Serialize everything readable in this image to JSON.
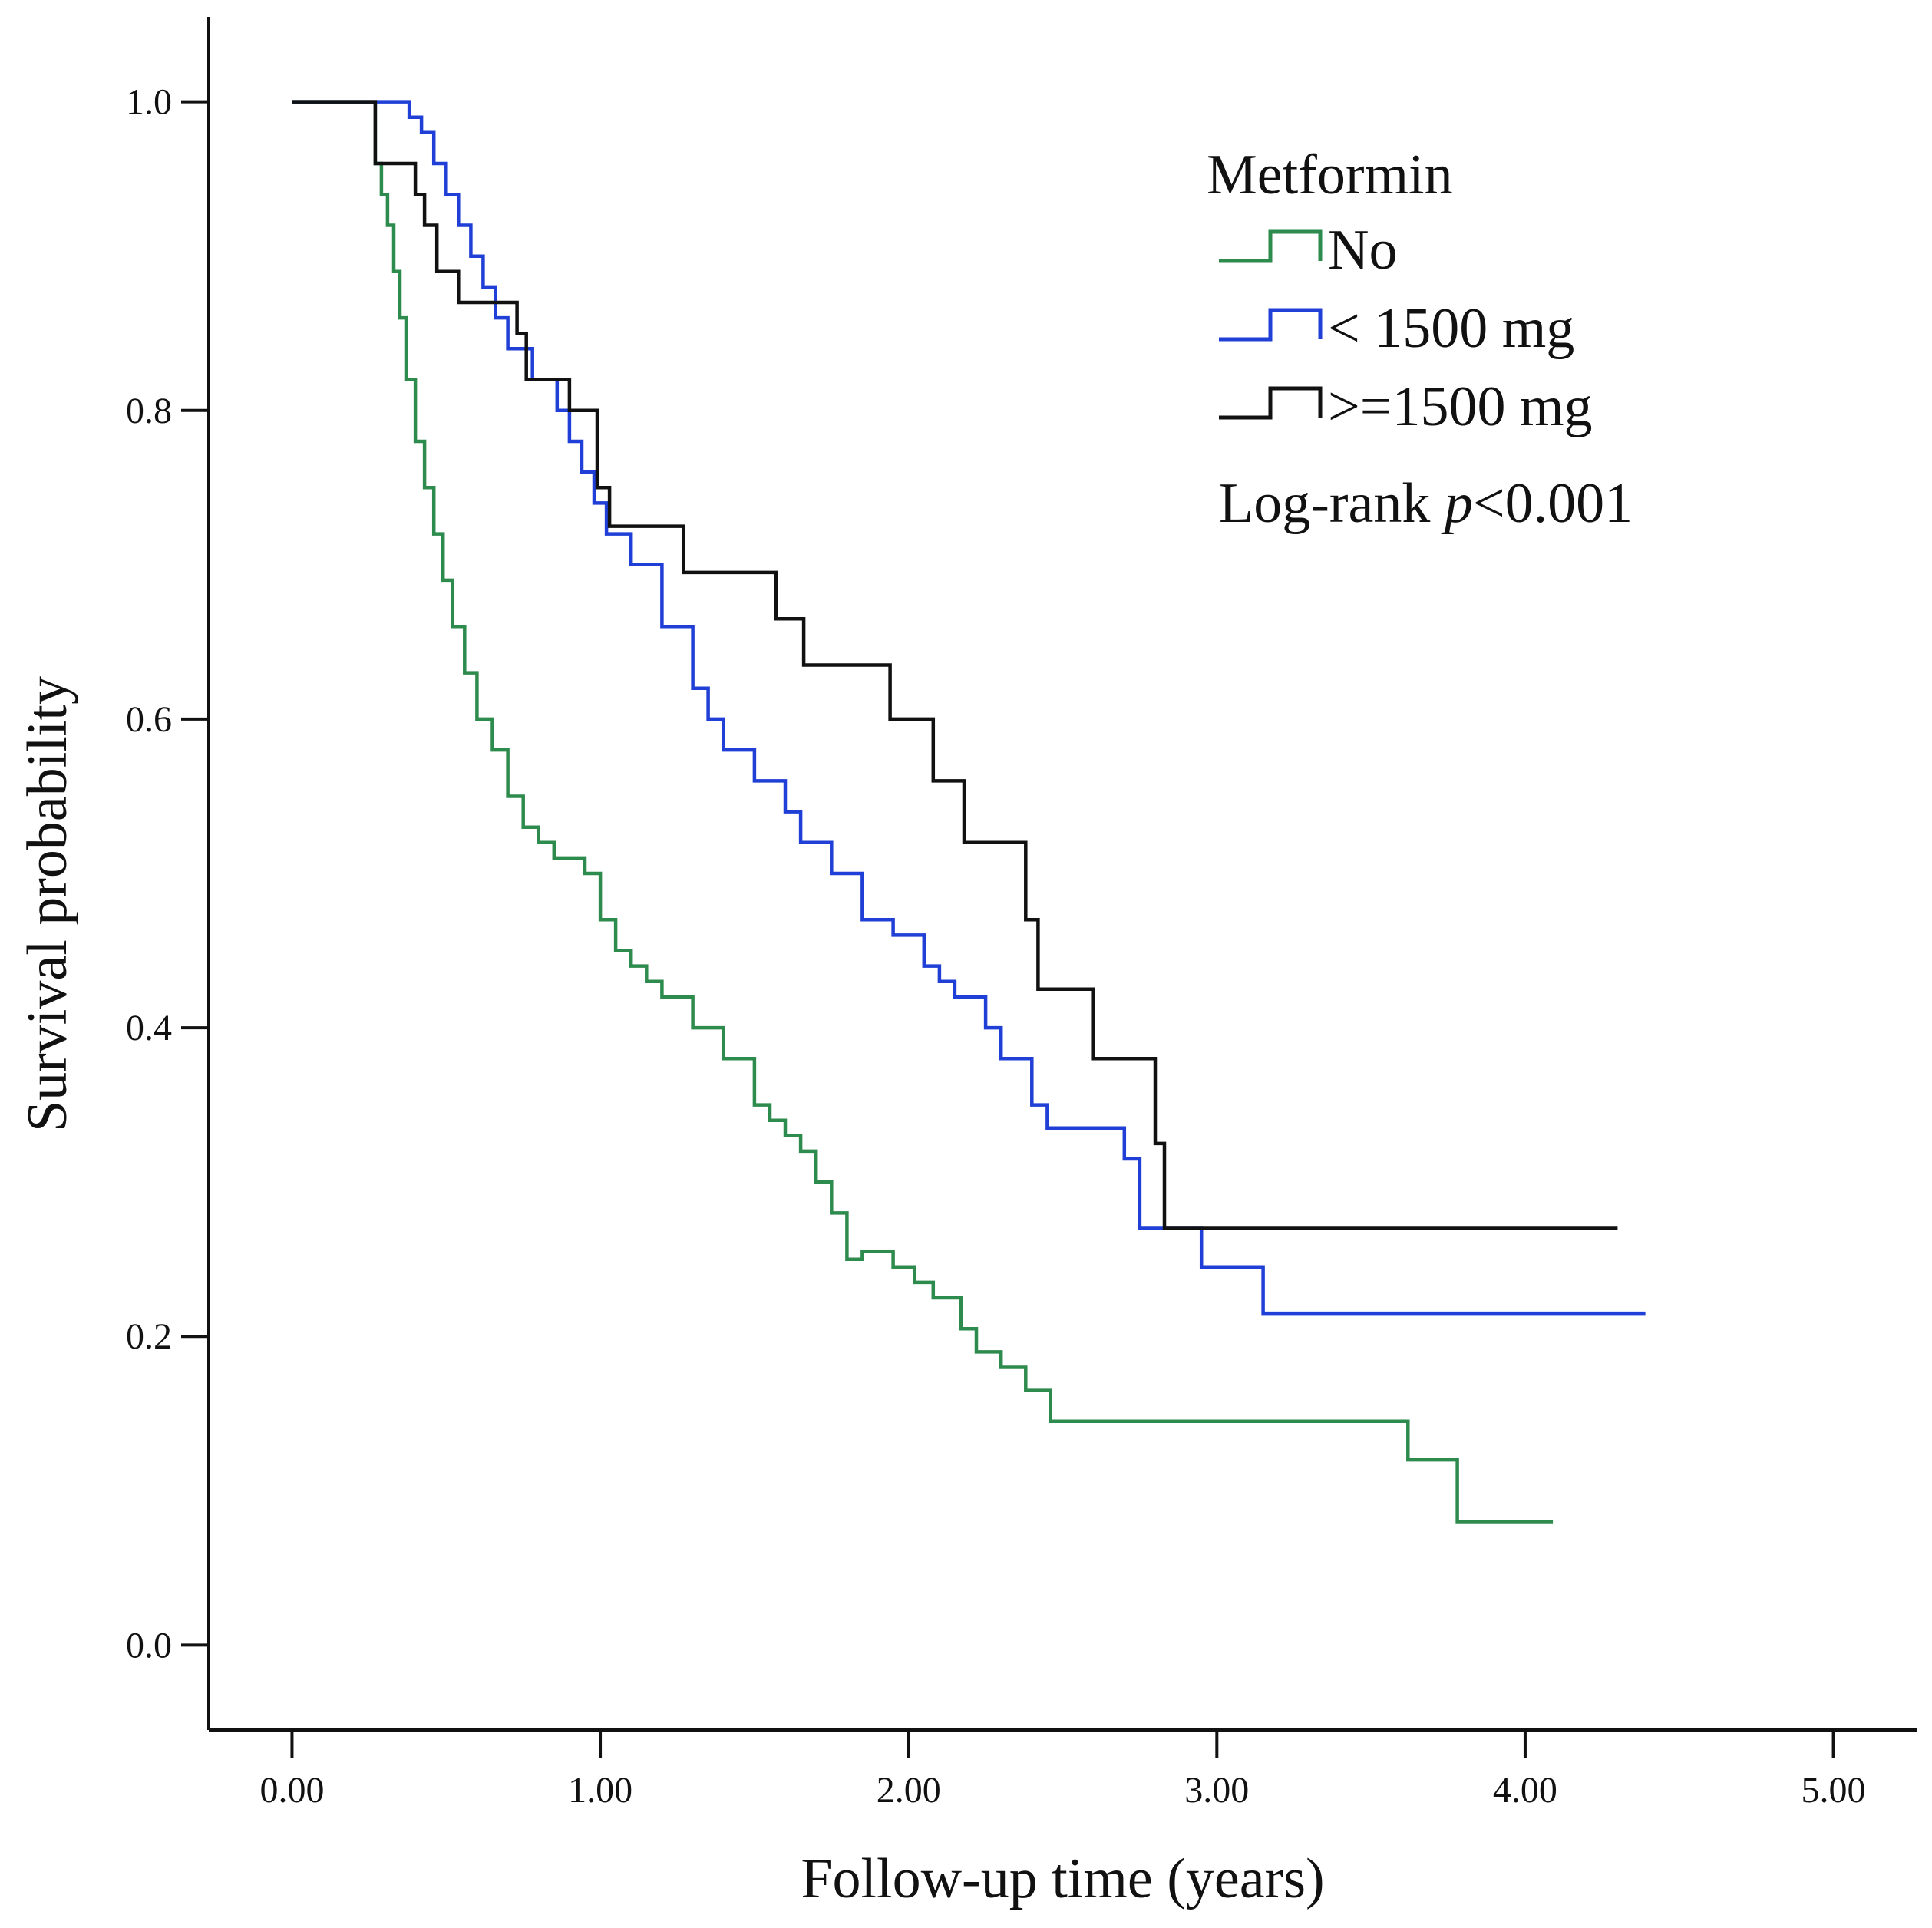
{
  "chart_data": {
    "type": "line",
    "subtype": "kaplan-meier-step",
    "title": "",
    "xlabel": "Follow-up time (years)",
    "ylabel": "Survival probability",
    "xlim": [
      -0.27,
      5.27
    ],
    "ylim": [
      -0.055,
      1.055
    ],
    "x_ticks": [
      0,
      1,
      2,
      3,
      4,
      5
    ],
    "x_tick_labels": [
      "0.00",
      "1.00",
      "2.00",
      "3.00",
      "4.00",
      "5.00"
    ],
    "y_ticks": [
      0,
      0.2,
      0.4,
      0.6,
      0.8,
      1.0
    ],
    "y_tick_labels": [
      "0.0",
      "0.2",
      "0.4",
      "0.6",
      "0.8",
      "1.0"
    ],
    "grid": false,
    "legend": {
      "title": "Metformin",
      "position": "top-right",
      "note_prefix": "Log-rank ",
      "note_italic": "p",
      "note_suffix": "<0.001"
    },
    "series": [
      {
        "name": "No",
        "color": "#2e8b4e",
        "x": [
          0.0,
          0.27,
          0.29,
          0.31,
          0.33,
          0.35,
          0.37,
          0.4,
          0.43,
          0.46,
          0.49,
          0.52,
          0.56,
          0.6,
          0.65,
          0.7,
          0.75,
          0.8,
          0.85,
          0.9,
          0.95,
          1.0,
          1.05,
          1.1,
          1.15,
          1.2,
          1.3,
          1.4,
          1.5,
          1.55,
          1.6,
          1.65,
          1.7,
          1.75,
          1.8,
          1.85,
          1.95,
          2.02,
          2.08,
          2.17,
          2.22,
          2.3,
          2.38,
          2.46,
          3.2,
          3.62,
          3.78,
          4.09
        ],
        "y": [
          1.0,
          0.96,
          0.94,
          0.92,
          0.89,
          0.86,
          0.82,
          0.78,
          0.75,
          0.72,
          0.69,
          0.66,
          0.63,
          0.6,
          0.58,
          0.55,
          0.53,
          0.52,
          0.51,
          0.51,
          0.5,
          0.47,
          0.45,
          0.44,
          0.43,
          0.42,
          0.4,
          0.38,
          0.35,
          0.34,
          0.33,
          0.32,
          0.3,
          0.28,
          0.25,
          0.255,
          0.245,
          0.235,
          0.225,
          0.205,
          0.19,
          0.18,
          0.165,
          0.145,
          0.145,
          0.12,
          0.08,
          0.08
        ]
      },
      {
        "name": "< 1500 mg",
        "color": "#1f3fd6",
        "x": [
          0.0,
          0.38,
          0.42,
          0.46,
          0.5,
          0.54,
          0.58,
          0.62,
          0.66,
          0.7,
          0.78,
          0.86,
          0.9,
          0.94,
          0.98,
          1.02,
          1.1,
          1.2,
          1.3,
          1.35,
          1.4,
          1.5,
          1.6,
          1.65,
          1.75,
          1.85,
          1.95,
          2.05,
          2.1,
          2.15,
          2.25,
          2.3,
          2.4,
          2.45,
          2.6,
          2.7,
          2.75,
          2.8,
          2.95,
          3.15,
          4.39
        ],
        "y": [
          1.0,
          0.99,
          0.98,
          0.96,
          0.94,
          0.92,
          0.9,
          0.88,
          0.86,
          0.84,
          0.82,
          0.8,
          0.78,
          0.76,
          0.74,
          0.72,
          0.7,
          0.66,
          0.62,
          0.6,
          0.58,
          0.56,
          0.54,
          0.52,
          0.5,
          0.47,
          0.46,
          0.44,
          0.43,
          0.42,
          0.4,
          0.38,
          0.35,
          0.335,
          0.335,
          0.315,
          0.27,
          0.27,
          0.245,
          0.215,
          0.215
        ]
      },
      {
        "name": ">=1500 mg",
        "color": "#111111",
        "x": [
          0.0,
          0.27,
          0.4,
          0.43,
          0.47,
          0.54,
          0.69,
          0.73,
          0.76,
          0.9,
          0.99,
          1.03,
          1.27,
          1.57,
          1.66,
          1.94,
          2.08,
          2.18,
          2.38,
          2.42,
          2.6,
          2.8,
          2.83,
          4.3
        ],
        "y": [
          1.0,
          0.96,
          0.94,
          0.92,
          0.89,
          0.87,
          0.87,
          0.85,
          0.82,
          0.8,
          0.75,
          0.725,
          0.695,
          0.665,
          0.635,
          0.6,
          0.56,
          0.52,
          0.47,
          0.425,
          0.38,
          0.325,
          0.27,
          0.27
        ]
      }
    ]
  }
}
